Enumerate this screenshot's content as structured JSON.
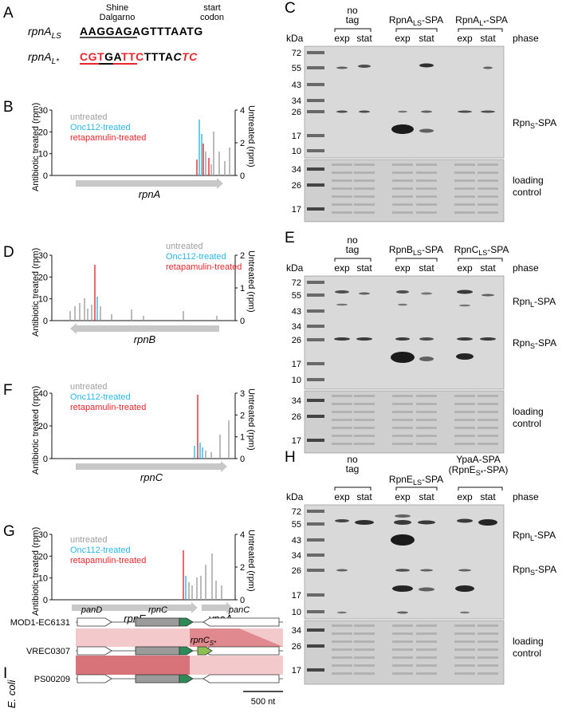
{
  "panels": {
    "A": {
      "letter": "A",
      "shine_dalgarno_label_line1": "Shine",
      "shine_dalgarno_label_line2": "Dalgarno",
      "start_codon_label_line1": "start",
      "start_codon_label_line2": "codon",
      "rows": [
        {
          "name": "rpnA",
          "sub": "LS",
          "seq": "AAGGAGAGTTTAATG"
        },
        {
          "name": "rpnA",
          "sub": "L*",
          "seq": "CGTGATTCTTTACTC"
        }
      ]
    },
    "B": {
      "letter": "B",
      "gene": "rpnA",
      "left_axis_label": "Antibiotic treated (rpm)",
      "right_axis_label": "Untreated (rpm)",
      "left_ticks": [
        "30",
        "20",
        "10",
        "0"
      ],
      "right_ticks": [
        "4",
        "2",
        "0"
      ],
      "legend": [
        "untreated",
        "Onc112-treated",
        "retapamulin-treated"
      ]
    },
    "D": {
      "letter": "D",
      "gene": "rpnB",
      "left_axis_label": "Antibiotic treated (rpm)",
      "right_axis_label": "Untreated (rpm)",
      "left_ticks": [
        "30",
        "20",
        "10",
        "0"
      ],
      "right_ticks": [
        "2",
        "1",
        "0"
      ],
      "legend": [
        "untreated",
        "Onc112-treated",
        "retapamulin-treated"
      ]
    },
    "F": {
      "letter": "F",
      "gene": "rpnC",
      "left_axis_label": "Antibiotic treated (rpm)",
      "right_axis_label": "Untreated (rpm)",
      "left_ticks": [
        "40",
        "20",
        "0"
      ],
      "right_ticks": [
        "3",
        "2",
        "1",
        "0"
      ],
      "legend": [
        "untreated",
        "Onc112-treated",
        "retapamulin-treated"
      ]
    },
    "G": {
      "letter": "G",
      "gene": "rpnE",
      "gene2": "ypaA",
      "left_axis_label": "Antibiotic treated (rpm)",
      "right_axis_label": "Untreated (rpm)",
      "left_ticks": [
        "30",
        "20",
        "10",
        "0"
      ],
      "right_ticks": [
        "4",
        "2",
        "0"
      ],
      "legend": [
        "untreated",
        "Onc112-treated",
        "retapamulin-treated"
      ]
    },
    "C": {
      "letter": "C",
      "kda": "kDa",
      "markers": [
        "72",
        "55",
        "43",
        "34",
        "26",
        "17",
        "10"
      ],
      "lower_markers": [
        "34",
        "26",
        "17"
      ],
      "group1": [
        "no",
        "tag"
      ],
      "group2": "RpnA",
      "group2_sub": "LS",
      "group2_tail": "-SPA",
      "group3": "RpnA",
      "group3_sub": "L*",
      "group3_tail": "-SPA",
      "lanes": [
        "exp",
        "stat",
        "exp",
        "stat",
        "exp",
        "stat"
      ],
      "phase": "phase",
      "band_label_s": "Rpn",
      "band_label_s_sub": "S",
      "band_label_s_tail": "-SPA",
      "loading": [
        "loading",
        "control"
      ]
    },
    "E": {
      "letter": "E",
      "kda": "kDa",
      "markers": [
        "72",
        "55",
        "43",
        "34",
        "26",
        "17",
        "10"
      ],
      "lower_markers": [
        "34",
        "26",
        "17"
      ],
      "group1": [
        "no",
        "tag"
      ],
      "group2": "RpnB",
      "group2_sub": "LS",
      "group2_tail": "-SPA",
      "group3": "RpnC",
      "group3_sub": "LS",
      "group3_tail": "-SPA",
      "lanes": [
        "exp",
        "stat",
        "exp",
        "stat",
        "exp",
        "stat"
      ],
      "phase": "phase",
      "band_label_l": "Rpn",
      "band_label_l_sub": "L",
      "band_label_l_tail": "-SPA",
      "band_label_s": "Rpn",
      "band_label_s_sub": "S",
      "band_label_s_tail": "-SPA",
      "loading": [
        "loading",
        "control"
      ]
    },
    "H": {
      "letter": "H",
      "kda": "kDa",
      "markers": [
        "72",
        "55",
        "43",
        "34",
        "26",
        "17",
        "10"
      ],
      "lower_markers": [
        "34",
        "26",
        "17"
      ],
      "group1": [
        "no",
        "tag"
      ],
      "group2": "RpnE",
      "group2_sub": "LS",
      "group2_tail": "-SPA",
      "group3_line1": "YpaA-SPA",
      "group3_line2": "(RpnE",
      "group3_line2_sub": "S*",
      "group3_line2_tail": "-SPA)",
      "lanes": [
        "exp",
        "stat",
        "exp",
        "stat",
        "exp",
        "stat"
      ],
      "phase": "phase",
      "band_label_l": "Rpn",
      "band_label_l_sub": "L",
      "band_label_l_tail": "-SPA",
      "band_label_s": "Rpn",
      "band_label_s_sub": "S",
      "band_label_s_tail": "-SPA",
      "loading": [
        "loading",
        "control"
      ]
    },
    "I": {
      "letter": "I",
      "organism": "E. coli",
      "strains": [
        "MOD1-EC6131",
        "VREC0307",
        "PS00209"
      ],
      "genes": [
        "panD",
        "rpnC",
        "panC"
      ],
      "rpnCs": "rpnC",
      "rpnCs_sub": "S*",
      "scale": "500 nt"
    }
  },
  "colors": {
    "untreated": "#9e9e9e",
    "onc112": "#2bb6e8",
    "retapamulin": "#e8262b",
    "gene_arrow": "#c8c8c8",
    "green": "#2e8b57",
    "lightgreen": "#8cc152",
    "pink_light": "#f3c9cb",
    "pink_dark": "#d9737a",
    "seq_red": "#e8262b"
  }
}
